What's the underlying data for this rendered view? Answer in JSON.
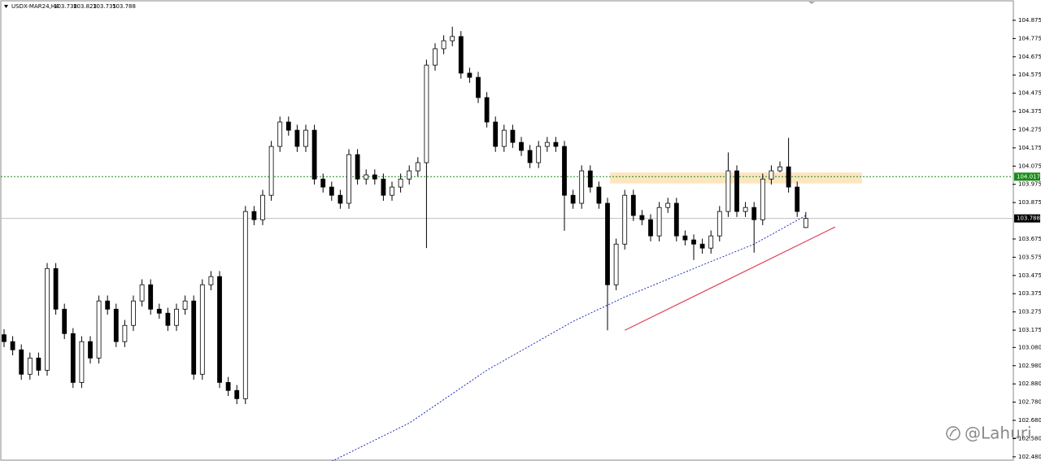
{
  "chart_data": {
    "type": "candlestick",
    "title": "USDX-MAR24,H4",
    "header_ohlc": [
      "103.738",
      "103.823",
      "103.735",
      "103.788"
    ],
    "ylim": [
      102.457,
      104.973
    ],
    "yticks": [
      104.875,
      104.775,
      104.675,
      104.575,
      104.475,
      104.375,
      104.275,
      104.175,
      104.075,
      103.975,
      103.875,
      103.675,
      103.575,
      103.475,
      103.375,
      103.275,
      103.175,
      {
        "value": 103.08,
        "label": "103.080"
      },
      {
        "value": 102.98,
        "label": "102.980"
      },
      {
        "value": 102.88,
        "label": "102.880"
      },
      {
        "value": 102.78,
        "label": "102.780"
      },
      {
        "value": 102.68,
        "label": "102.680"
      },
      {
        "value": 102.58,
        "label": "102.580"
      },
      {
        "value": 102.48,
        "label": "102.480"
      }
    ],
    "candles": [
      [
        103.15,
        103.18,
        103.082,
        103.112
      ],
      [
        103.112,
        103.142,
        103.037,
        103.067
      ],
      [
        103.067,
        103.097,
        102.903,
        102.933
      ],
      [
        102.933,
        103.052,
        102.903,
        103.022
      ],
      [
        103.022,
        103.052,
        102.925,
        102.955
      ],
      [
        102.955,
        103.543,
        102.925,
        103.513
      ],
      [
        103.513,
        103.543,
        103.26,
        103.29
      ],
      [
        103.29,
        103.32,
        103.126,
        103.156
      ],
      [
        103.156,
        103.186,
        102.858,
        102.888
      ],
      [
        102.888,
        103.142,
        102.858,
        103.112
      ],
      [
        103.112,
        103.142,
        102.992,
        103.022
      ],
      [
        103.022,
        103.365,
        102.992,
        103.335
      ],
      [
        103.335,
        103.365,
        103.26,
        103.29
      ],
      [
        103.29,
        103.32,
        103.082,
        103.112
      ],
      [
        103.112,
        103.231,
        103.082,
        103.201
      ],
      [
        103.201,
        103.365,
        103.171,
        103.335
      ],
      [
        103.335,
        103.454,
        103.305,
        103.424
      ],
      [
        103.424,
        103.454,
        103.26,
        103.29
      ],
      [
        103.29,
        103.32,
        103.238,
        103.268
      ],
      [
        103.268,
        103.298,
        103.171,
        103.201
      ],
      [
        103.201,
        103.32,
        103.171,
        103.29
      ],
      [
        103.29,
        103.365,
        103.26,
        103.335
      ],
      [
        103.335,
        103.365,
        102.903,
        102.933
      ],
      [
        102.933,
        103.454,
        102.903,
        103.424
      ],
      [
        103.424,
        103.499,
        103.394,
        103.469
      ],
      [
        103.469,
        103.499,
        102.858,
        102.888
      ],
      [
        102.888,
        102.918,
        102.814,
        102.844
      ],
      [
        102.844,
        102.874,
        102.769,
        102.799
      ],
      [
        102.799,
        103.856,
        102.769,
        103.826
      ],
      [
        103.826,
        103.856,
        103.751,
        103.781
      ],
      [
        103.781,
        103.945,
        103.751,
        103.915
      ],
      [
        103.915,
        104.213,
        103.885,
        104.183
      ],
      [
        104.183,
        104.347,
        104.153,
        104.317
      ],
      [
        104.317,
        104.347,
        104.242,
        104.272
      ],
      [
        104.272,
        104.302,
        104.153,
        104.183
      ],
      [
        104.183,
        104.302,
        104.153,
        104.272
      ],
      [
        104.272,
        104.302,
        103.974,
        104.004
      ],
      [
        104.004,
        104.034,
        103.93,
        103.96
      ],
      [
        103.96,
        103.99,
        103.885,
        103.915
      ],
      [
        103.915,
        103.945,
        103.841,
        103.871
      ],
      [
        103.871,
        104.168,
        103.841,
        104.138
      ],
      [
        104.138,
        104.168,
        103.974,
        104.004
      ],
      [
        104.004,
        104.057,
        103.974,
        104.027
      ],
      [
        104.027,
        104.057,
        103.974,
        104.004
      ],
      [
        104.004,
        104.034,
        103.885,
        103.915
      ],
      [
        103.915,
        103.99,
        103.885,
        103.96
      ],
      [
        103.96,
        104.034,
        103.93,
        104.004
      ],
      [
        104.004,
        104.079,
        103.974,
        104.049
      ],
      [
        104.049,
        104.124,
        104.019,
        104.094
      ],
      [
        104.094,
        104.659,
        103.625,
        104.629
      ],
      [
        104.629,
        104.749,
        104.599,
        104.719
      ],
      [
        104.719,
        104.793,
        104.689,
        104.763
      ],
      [
        104.763,
        104.84,
        104.733,
        104.786
      ],
      [
        104.786,
        104.816,
        104.555,
        104.585
      ],
      [
        104.585,
        104.615,
        104.532,
        104.562
      ],
      [
        104.562,
        104.592,
        104.421,
        104.451
      ],
      [
        104.451,
        104.481,
        104.287,
        104.317
      ],
      [
        104.317,
        104.347,
        104.153,
        104.183
      ],
      [
        104.183,
        104.302,
        104.153,
        104.272
      ],
      [
        104.272,
        104.302,
        104.175,
        104.205
      ],
      [
        104.205,
        104.235,
        104.131,
        104.161
      ],
      [
        104.161,
        104.191,
        104.064,
        104.094
      ],
      [
        104.094,
        104.213,
        104.064,
        104.183
      ],
      [
        104.183,
        104.235,
        104.153,
        104.205
      ],
      [
        104.205,
        104.235,
        104.153,
        104.183
      ],
      [
        104.183,
        104.213,
        103.72,
        103.915
      ],
      [
        103.915,
        103.945,
        103.841,
        103.871
      ],
      [
        103.871,
        104.079,
        103.841,
        104.049
      ],
      [
        104.049,
        104.079,
        103.93,
        103.96
      ],
      [
        103.96,
        103.99,
        103.841,
        103.871
      ],
      [
        103.871,
        103.901,
        103.174,
        103.424
      ],
      [
        103.424,
        103.677,
        103.394,
        103.647
      ],
      [
        103.647,
        103.945,
        103.617,
        103.915
      ],
      [
        103.915,
        103.945,
        103.774,
        103.804
      ],
      [
        103.804,
        103.834,
        103.751,
        103.781
      ],
      [
        103.781,
        103.811,
        103.662,
        103.692
      ],
      [
        103.692,
        103.878,
        103.662,
        103.848
      ],
      [
        103.848,
        103.901,
        103.818,
        103.871
      ],
      [
        103.871,
        103.901,
        103.662,
        103.692
      ],
      [
        103.692,
        103.722,
        103.64,
        103.67
      ],
      [
        103.67,
        103.7,
        103.56,
        103.647
      ],
      [
        103.647,
        103.677,
        103.595,
        103.625
      ],
      [
        103.625,
        103.722,
        103.595,
        103.692
      ],
      [
        103.692,
        103.856,
        103.662,
        103.826
      ],
      [
        103.826,
        104.15,
        103.796,
        104.049
      ],
      [
        104.049,
        104.079,
        103.796,
        103.826
      ],
      [
        103.826,
        103.878,
        103.796,
        103.848
      ],
      [
        103.848,
        103.878,
        103.6,
        103.781
      ],
      [
        103.781,
        104.034,
        103.751,
        104.004
      ],
      [
        104.004,
        104.079,
        103.974,
        104.049
      ],
      [
        104.049,
        104.101,
        104.041,
        104.071
      ],
      [
        104.071,
        104.23,
        103.93,
        103.96
      ],
      [
        103.96,
        103.99,
        103.796,
        103.826
      ],
      [
        103.738,
        103.823,
        103.735,
        103.788
      ]
    ],
    "moving_average": {
      "x": [
        38,
        47,
        56,
        66,
        72,
        80,
        87,
        93
      ],
      "values": [
        102.455,
        102.665,
        102.955,
        103.223,
        103.357,
        103.513,
        103.647,
        103.804
      ],
      "color": "#1f2fb8"
    },
    "trendline": {
      "x": [
        72,
        96.4
      ],
      "values": [
        103.174,
        103.741
      ],
      "color": "#e0405a"
    },
    "zone": {
      "x": [
        70.3,
        99.5
      ],
      "range": [
        103.98,
        104.04
      ],
      "color": "#fbe0b4"
    },
    "levels": [
      {
        "value": 104.017,
        "label": "104.017",
        "color": "#1a8a1a",
        "style": "dotted"
      },
      {
        "value": 103.788,
        "label": "103.788",
        "color": "#000000",
        "style": "solid"
      }
    ],
    "watermark": "@Lahuri"
  }
}
